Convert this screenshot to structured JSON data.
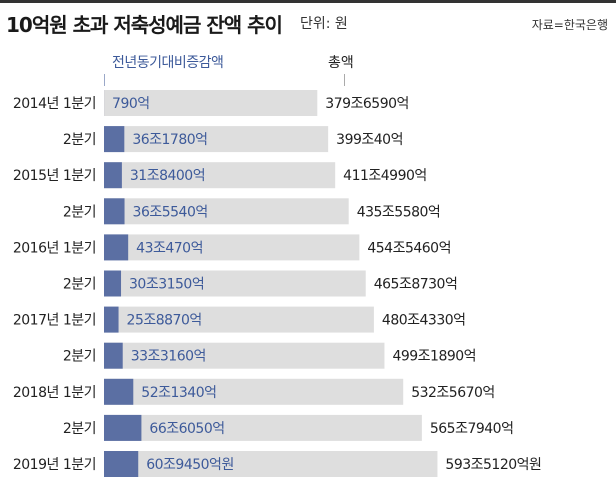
{
  "title": "10억원 초과 저축성예금 잔액 추이",
  "unit": "단위: 원",
  "source": "자료=한국은행",
  "legend": {
    "yoy": "전년동기대비증감액",
    "total": "총액"
  },
  "colors": {
    "yoy_bar": "#5b6fa3",
    "total_bar": "#dedede",
    "yoy_text": "#3d5a9a",
    "label_text": "#222222"
  },
  "chart_data": {
    "type": "bar",
    "orientation": "horizontal",
    "categories": [
      "2014년 1분기",
      "2분기",
      "2015년 1분기",
      "2분기",
      "2016년 1분기",
      "2분기",
      "2017년 1분기",
      "2분기",
      "2018년 1분기",
      "2분기",
      "2019년 1분기"
    ],
    "series": [
      {
        "name": "총액",
        "unit": "조원",
        "values": [
          379.659,
          399.004,
          411.499,
          435.558,
          454.546,
          465.873,
          480.433,
          499.189,
          532.567,
          565.794,
          593.512
        ],
        "labels": [
          "379조6590억",
          "399조40억",
          "411조4990억",
          "435조5580억",
          "454조5460억",
          "465조8730억",
          "480조4330억",
          "499조1890억",
          "532조5670억",
          "565조7940억",
          "593조5120억원"
        ]
      },
      {
        "name": "전년동기대비증감액",
        "unit": "조원",
        "values": [
          0.079,
          36.178,
          31.84,
          36.554,
          43.047,
          30.315,
          25.887,
          33.316,
          52.134,
          66.605,
          60.945
        ],
        "labels": [
          "790억",
          "36조1780억",
          "31조8400억",
          "36조5540억",
          "43조470억",
          "30조3150억",
          "25조8870억",
          "33조3160억",
          "52조1340억",
          "66조6050억",
          "60조9450억원"
        ]
      }
    ]
  }
}
